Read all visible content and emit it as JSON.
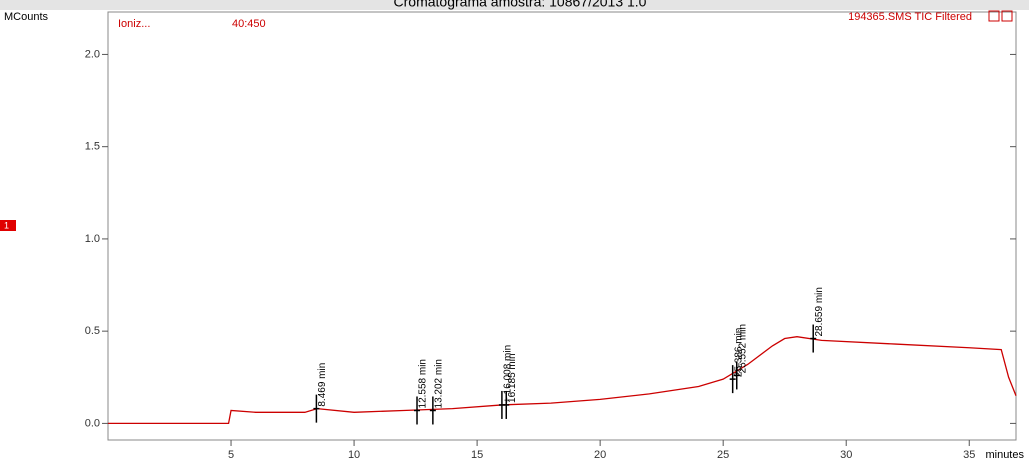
{
  "chart_data": {
    "type": "line",
    "title": "Cromatograma amostra: 10867/2013 1.0",
    "y_label": "MCounts",
    "x_label": "minutes",
    "ion_label": "Ioniz...",
    "mass_range": "40:450",
    "file_label": "194365.SMS TIC Filtered",
    "trace_marker": "1",
    "xlim": [
      0,
      36.9
    ],
    "ylim": [
      -0.09,
      2.23
    ],
    "xticks": [
      5,
      10,
      15,
      20,
      25,
      30,
      35
    ],
    "yticks": [
      {
        "value": 0,
        "label": "0.0"
      },
      {
        "value": 0.5,
        "label": "0.5"
      },
      {
        "value": 1,
        "label": "1.0"
      },
      {
        "value": 1.5,
        "label": "1.5"
      },
      {
        "value": 2,
        "label": "2.0"
      }
    ],
    "series": [
      {
        "color": "#cc0000",
        "x": [
          0,
          4.9,
          5.0,
          6,
          8,
          8.5,
          10,
          12,
          14,
          16,
          18,
          20,
          22,
          24,
          25,
          26,
          27,
          27.5,
          28,
          29,
          32,
          35,
          36.3,
          36.6,
          36.9
        ],
        "values": [
          0,
          0,
          0.07,
          0.06,
          0.06,
          0.08,
          0.06,
          0.07,
          0.08,
          0.1,
          0.11,
          0.13,
          0.16,
          0.2,
          0.24,
          0.32,
          0.42,
          0.46,
          0.47,
          0.45,
          0.43,
          0.41,
          0.4,
          0.25,
          0.15
        ]
      }
    ],
    "peaks": [
      {
        "label": "8.469 min",
        "x": 8.469,
        "y": 0.08
      },
      {
        "label": "12.558 min",
        "x": 12.558,
        "y": 0.07
      },
      {
        "label": "13.202 min",
        "x": 13.202,
        "y": 0.07
      },
      {
        "label": "+ 16.008 min",
        "x": 16.008,
        "y": 0.1
      },
      {
        "label": "16.185 min",
        "x": 16.185,
        "y": 0.1
      },
      {
        "label": "25.386 min",
        "x": 25.386,
        "y": 0.24
      },
      {
        "label": "25.552 min",
        "x": 25.552,
        "y": 0.26
      },
      {
        "label": "28.659 min",
        "x": 28.659,
        "y": 0.46
      }
    ]
  }
}
